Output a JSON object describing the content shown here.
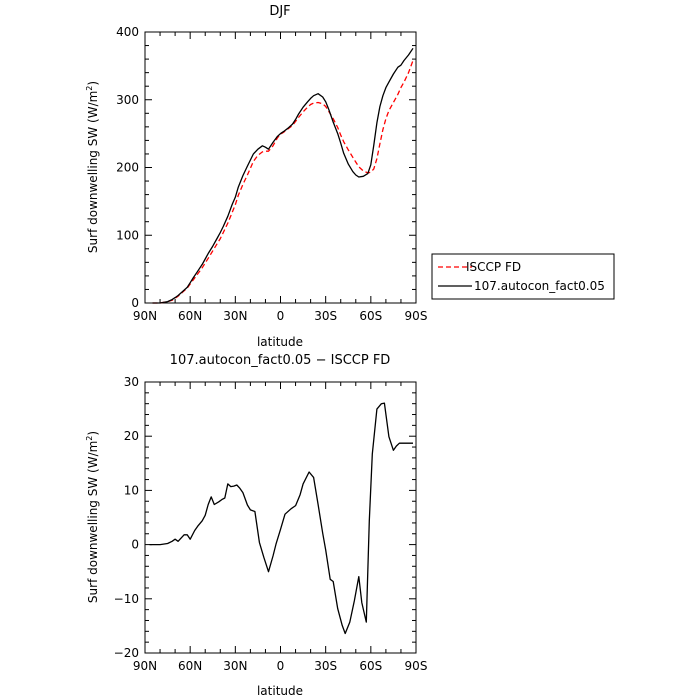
{
  "chart_data": [
    {
      "type": "line",
      "title": "DJF",
      "xlabel": "latitude",
      "ylabel": "Surf downwelling SW (W/m²)",
      "x_ticks": [
        "90N",
        "60N",
        "30N",
        "0",
        "30S",
        "60S",
        "90S"
      ],
      "xlim": [
        90,
        -90
      ],
      "y_ticks": [
        "0",
        "100",
        "200",
        "300",
        "400"
      ],
      "ylim": [
        0,
        400
      ],
      "legend_position": "right-middle",
      "series": [
        {
          "name": "ISCCP FD",
          "color": "#ff0000",
          "dash": "dashed",
          "x": [
            85,
            80,
            75,
            72,
            70,
            68,
            65,
            62,
            60,
            58,
            55,
            52,
            50,
            48,
            45,
            42,
            40,
            38,
            35,
            32,
            30,
            28,
            25,
            22,
            20,
            18,
            15,
            12,
            10,
            8,
            5,
            2,
            0,
            -2,
            -5,
            -8,
            -10,
            -12,
            -15,
            -18,
            -20,
            -22,
            -25,
            -28,
            -30,
            -32,
            -35,
            -38,
            -40,
            -42,
            -45,
            -48,
            -50,
            -52,
            -55,
            -58,
            -60,
            -62,
            -64,
            -66,
            -68,
            -70,
            -72,
            -75,
            -78,
            -80,
            -82,
            -85,
            -88
          ],
          "y": [
            0,
            0,
            2,
            4,
            7,
            10,
            16,
            22,
            28,
            34,
            43,
            52,
            59,
            66,
            77,
            88,
            95,
            104,
            118,
            134,
            145,
            159,
            175,
            189,
            199,
            209,
            218,
            223,
            224,
            224,
            232,
            244,
            249,
            252,
            257,
            262,
            268,
            274,
            282,
            289,
            293,
            295,
            296,
            294,
            290,
            283,
            272,
            259,
            248,
            238,
            226,
            215,
            208,
            201,
            195,
            192,
            193,
            198,
            213,
            235,
            256,
            272,
            284,
            296,
            308,
            318,
            326,
            340,
            358
          ]
        },
        {
          "name": "107.autocon_fact0.05",
          "color": "#000000",
          "dash": "solid",
          "x": [
            85,
            80,
            75,
            72,
            70,
            68,
            65,
            62,
            60,
            58,
            55,
            52,
            50,
            48,
            45,
            42,
            40,
            38,
            35,
            32,
            30,
            28,
            25,
            22,
            20,
            18,
            15,
            12,
            10,
            8,
            5,
            2,
            0,
            -2,
            -5,
            -8,
            -10,
            -12,
            -15,
            -18,
            -20,
            -22,
            -25,
            -28,
            -30,
            -32,
            -35,
            -38,
            -40,
            -42,
            -45,
            -48,
            -50,
            -52,
            -55,
            -58,
            -60,
            -62,
            -64,
            -66,
            -68,
            -70,
            -72,
            -75,
            -78,
            -80,
            -82,
            -85,
            -88
          ],
          "y": [
            0,
            0,
            2,
            5,
            8,
            11,
            17,
            23,
            30,
            37,
            47,
            57,
            65,
            73,
            84,
            96,
            104,
            113,
            128,
            146,
            156,
            171,
            188,
            202,
            211,
            220,
            227,
            232,
            230,
            227,
            237,
            246,
            250,
            253,
            258,
            264,
            271,
            279,
            289,
            297,
            302,
            306,
            309,
            304,
            297,
            286,
            267,
            250,
            236,
            221,
            205,
            194,
            189,
            186,
            187,
            191,
            204,
            233,
            266,
            290,
            306,
            318,
            326,
            338,
            348,
            351,
            358,
            366,
            376
          ]
        }
      ]
    },
    {
      "type": "line",
      "title": "107.autocon_fact0.05 − ISCCP FD",
      "xlabel": "latitude",
      "ylabel": "Surf downwelling SW (W/m²)",
      "x_ticks": [
        "90N",
        "60N",
        "30N",
        "0",
        "30S",
        "60S",
        "90S"
      ],
      "xlim": [
        90,
        -90
      ],
      "y_ticks": [
        "−20",
        "−10",
        "0",
        "10",
        "20",
        "30"
      ],
      "ylim": [
        -20,
        30
      ],
      "series": [
        {
          "name": "107.autocon_fact0.05 − ISCCP FD",
          "color": "#000000",
          "dash": "solid",
          "x": [
            87,
            80,
            75,
            72,
            70,
            68,
            66,
            64,
            62,
            60,
            57,
            55,
            52,
            50,
            48,
            46,
            44,
            41,
            39,
            37,
            35,
            33,
            31,
            29,
            27,
            25,
            22,
            20,
            17,
            14,
            11,
            8,
            5,
            3,
            0,
            -3,
            -7,
            -10,
            -13,
            -15,
            -19,
            -22,
            -25,
            -28,
            -30,
            -33,
            -35,
            -38,
            -41,
            -43,
            -46,
            -49,
            -52,
            -54,
            -57,
            -59,
            -61,
            -64,
            -67,
            -69,
            -72,
            -75,
            -77,
            -79,
            -82,
            -84,
            -86,
            -88
          ],
          "y": [
            0,
            0,
            0.2,
            0.6,
            1,
            0.6,
            1.2,
            1.8,
            1.8,
            1,
            2.6,
            3.4,
            4.4,
            5.4,
            7.4,
            8.8,
            7.4,
            7.9,
            8.3,
            8.6,
            11.2,
            10.7,
            10.8,
            11.0,
            10.4,
            9.6,
            7.3,
            6.4,
            6.1,
            0.4,
            -2.4,
            -5.0,
            -2.1,
            0.1,
            2.8,
            5.6,
            6.6,
            7.2,
            9.2,
            11.2,
            13.4,
            12.4,
            7.4,
            2.1,
            -1.0,
            -6.4,
            -6.8,
            -11.8,
            -14.9,
            -16.4,
            -14.3,
            -10.4,
            -5.9,
            -10.7,
            -14.3,
            4.4,
            16.7,
            25.0,
            26.0,
            26.1,
            19.9,
            17.4,
            18.2,
            18.7,
            18.7,
            18.7,
            18.7,
            18.7
          ]
        }
      ]
    }
  ]
}
